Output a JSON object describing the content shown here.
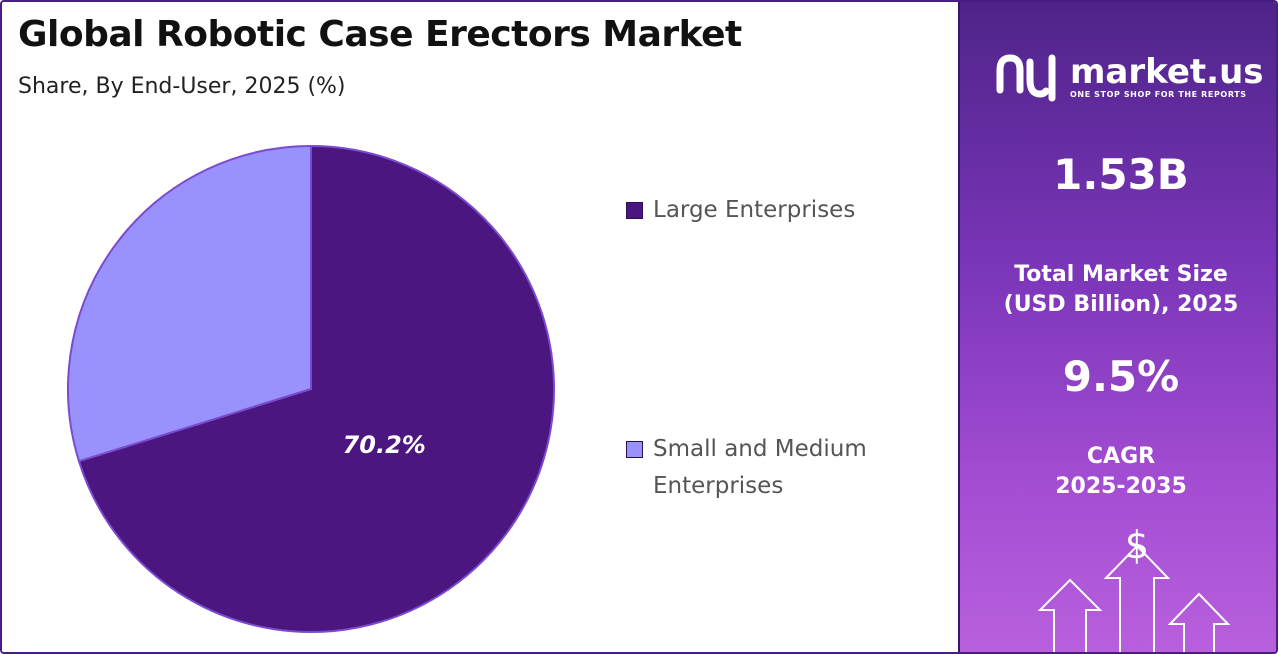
{
  "title": "Global Robotic Case Erectors Market",
  "subtitle": "Share, By End-User, 2025 (%)",
  "chart_data": {
    "type": "pie",
    "title": "Global Robotic Case Erectors Market",
    "subtitle": "Share, By End-User, 2025 (%)",
    "labels": [
      "Large Enterprises",
      "Small and Medium Enterprises"
    ],
    "values": [
      70.2,
      29.8
    ],
    "data_labels": [
      "70.2%",
      ""
    ],
    "colors": [
      "#4b1680",
      "#9a92fc"
    ],
    "start_angle_deg": 0,
    "direction": "clockwise",
    "legend_position": "right"
  },
  "legend": [
    {
      "label": "Large Enterprises",
      "color": "#4b1680"
    },
    {
      "label": "Small and Medium Enterprises",
      "color": "#9a92fc"
    }
  ],
  "sidebar": {
    "logo_name": "market.us",
    "logo_tagline": "ONE STOP SHOP FOR THE REPORTS",
    "market_size_value": "1.53B",
    "market_size_label_line1": "Total Market Size",
    "market_size_label_line2": "(USD Billion), 2025",
    "cagr_value": "9.5%",
    "cagr_label_line1": "CAGR",
    "cagr_label_line2": "2025-2035",
    "dollar_symbol": "$",
    "logo_icon": "market-us-logo-icon",
    "arrows_icon": "growth-arrows-icon"
  }
}
